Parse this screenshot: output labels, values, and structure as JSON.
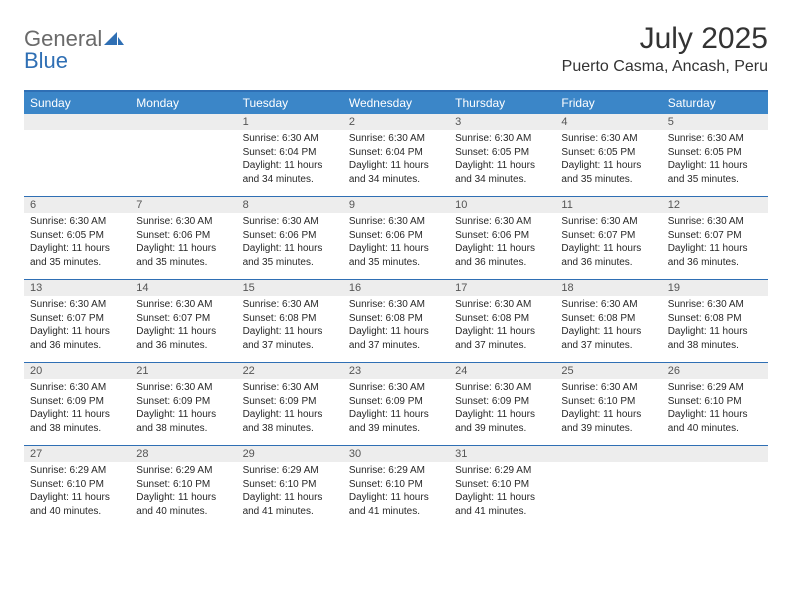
{
  "brand": {
    "part1": "General",
    "part2": "Blue"
  },
  "title": "July 2025",
  "location": "Puerto Casma, Ancash, Peru",
  "colors": {
    "header_bg": "#3b86c8",
    "border": "#2f6fb4",
    "daynum_bg": "#ededed",
    "text": "#282828"
  },
  "weekdays": [
    "Sunday",
    "Monday",
    "Tuesday",
    "Wednesday",
    "Thursday",
    "Friday",
    "Saturday"
  ],
  "weeks": [
    [
      {
        "n": "",
        "sr": "",
        "ss": "",
        "dl": ""
      },
      {
        "n": "",
        "sr": "",
        "ss": "",
        "dl": ""
      },
      {
        "n": "1",
        "sr": "Sunrise: 6:30 AM",
        "ss": "Sunset: 6:04 PM",
        "dl": "Daylight: 11 hours and 34 minutes."
      },
      {
        "n": "2",
        "sr": "Sunrise: 6:30 AM",
        "ss": "Sunset: 6:04 PM",
        "dl": "Daylight: 11 hours and 34 minutes."
      },
      {
        "n": "3",
        "sr": "Sunrise: 6:30 AM",
        "ss": "Sunset: 6:05 PM",
        "dl": "Daylight: 11 hours and 34 minutes."
      },
      {
        "n": "4",
        "sr": "Sunrise: 6:30 AM",
        "ss": "Sunset: 6:05 PM",
        "dl": "Daylight: 11 hours and 35 minutes."
      },
      {
        "n": "5",
        "sr": "Sunrise: 6:30 AM",
        "ss": "Sunset: 6:05 PM",
        "dl": "Daylight: 11 hours and 35 minutes."
      }
    ],
    [
      {
        "n": "6",
        "sr": "Sunrise: 6:30 AM",
        "ss": "Sunset: 6:05 PM",
        "dl": "Daylight: 11 hours and 35 minutes."
      },
      {
        "n": "7",
        "sr": "Sunrise: 6:30 AM",
        "ss": "Sunset: 6:06 PM",
        "dl": "Daylight: 11 hours and 35 minutes."
      },
      {
        "n": "8",
        "sr": "Sunrise: 6:30 AM",
        "ss": "Sunset: 6:06 PM",
        "dl": "Daylight: 11 hours and 35 minutes."
      },
      {
        "n": "9",
        "sr": "Sunrise: 6:30 AM",
        "ss": "Sunset: 6:06 PM",
        "dl": "Daylight: 11 hours and 35 minutes."
      },
      {
        "n": "10",
        "sr": "Sunrise: 6:30 AM",
        "ss": "Sunset: 6:06 PM",
        "dl": "Daylight: 11 hours and 36 minutes."
      },
      {
        "n": "11",
        "sr": "Sunrise: 6:30 AM",
        "ss": "Sunset: 6:07 PM",
        "dl": "Daylight: 11 hours and 36 minutes."
      },
      {
        "n": "12",
        "sr": "Sunrise: 6:30 AM",
        "ss": "Sunset: 6:07 PM",
        "dl": "Daylight: 11 hours and 36 minutes."
      }
    ],
    [
      {
        "n": "13",
        "sr": "Sunrise: 6:30 AM",
        "ss": "Sunset: 6:07 PM",
        "dl": "Daylight: 11 hours and 36 minutes."
      },
      {
        "n": "14",
        "sr": "Sunrise: 6:30 AM",
        "ss": "Sunset: 6:07 PM",
        "dl": "Daylight: 11 hours and 36 minutes."
      },
      {
        "n": "15",
        "sr": "Sunrise: 6:30 AM",
        "ss": "Sunset: 6:08 PM",
        "dl": "Daylight: 11 hours and 37 minutes."
      },
      {
        "n": "16",
        "sr": "Sunrise: 6:30 AM",
        "ss": "Sunset: 6:08 PM",
        "dl": "Daylight: 11 hours and 37 minutes."
      },
      {
        "n": "17",
        "sr": "Sunrise: 6:30 AM",
        "ss": "Sunset: 6:08 PM",
        "dl": "Daylight: 11 hours and 37 minutes."
      },
      {
        "n": "18",
        "sr": "Sunrise: 6:30 AM",
        "ss": "Sunset: 6:08 PM",
        "dl": "Daylight: 11 hours and 37 minutes."
      },
      {
        "n": "19",
        "sr": "Sunrise: 6:30 AM",
        "ss": "Sunset: 6:08 PM",
        "dl": "Daylight: 11 hours and 38 minutes."
      }
    ],
    [
      {
        "n": "20",
        "sr": "Sunrise: 6:30 AM",
        "ss": "Sunset: 6:09 PM",
        "dl": "Daylight: 11 hours and 38 minutes."
      },
      {
        "n": "21",
        "sr": "Sunrise: 6:30 AM",
        "ss": "Sunset: 6:09 PM",
        "dl": "Daylight: 11 hours and 38 minutes."
      },
      {
        "n": "22",
        "sr": "Sunrise: 6:30 AM",
        "ss": "Sunset: 6:09 PM",
        "dl": "Daylight: 11 hours and 38 minutes."
      },
      {
        "n": "23",
        "sr": "Sunrise: 6:30 AM",
        "ss": "Sunset: 6:09 PM",
        "dl": "Daylight: 11 hours and 39 minutes."
      },
      {
        "n": "24",
        "sr": "Sunrise: 6:30 AM",
        "ss": "Sunset: 6:09 PM",
        "dl": "Daylight: 11 hours and 39 minutes."
      },
      {
        "n": "25",
        "sr": "Sunrise: 6:30 AM",
        "ss": "Sunset: 6:10 PM",
        "dl": "Daylight: 11 hours and 39 minutes."
      },
      {
        "n": "26",
        "sr": "Sunrise: 6:29 AM",
        "ss": "Sunset: 6:10 PM",
        "dl": "Daylight: 11 hours and 40 minutes."
      }
    ],
    [
      {
        "n": "27",
        "sr": "Sunrise: 6:29 AM",
        "ss": "Sunset: 6:10 PM",
        "dl": "Daylight: 11 hours and 40 minutes."
      },
      {
        "n": "28",
        "sr": "Sunrise: 6:29 AM",
        "ss": "Sunset: 6:10 PM",
        "dl": "Daylight: 11 hours and 40 minutes."
      },
      {
        "n": "29",
        "sr": "Sunrise: 6:29 AM",
        "ss": "Sunset: 6:10 PM",
        "dl": "Daylight: 11 hours and 41 minutes."
      },
      {
        "n": "30",
        "sr": "Sunrise: 6:29 AM",
        "ss": "Sunset: 6:10 PM",
        "dl": "Daylight: 11 hours and 41 minutes."
      },
      {
        "n": "31",
        "sr": "Sunrise: 6:29 AM",
        "ss": "Sunset: 6:10 PM",
        "dl": "Daylight: 11 hours and 41 minutes."
      },
      {
        "n": "",
        "sr": "",
        "ss": "",
        "dl": ""
      },
      {
        "n": "",
        "sr": "",
        "ss": "",
        "dl": ""
      }
    ]
  ]
}
